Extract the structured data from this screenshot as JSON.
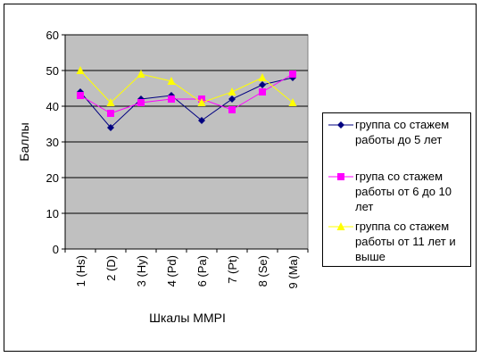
{
  "chart_data": {
    "type": "line",
    "title": "",
    "xlabel": "Шкалы MMPI",
    "ylabel": "Баллы",
    "ylim": [
      0,
      60
    ],
    "yticks": [
      0,
      10,
      20,
      30,
      40,
      50,
      60
    ],
    "grid": true,
    "legend_position": "right",
    "plot_background": "#c0c0c0",
    "categories": [
      "1 (Hs)",
      "2 (D)",
      "3 (Hy)",
      "4 (Pd)",
      "6 (Pa)",
      "7 (Pt)",
      "8 (Se)",
      "9 (Ma)"
    ],
    "series": [
      {
        "name": "группа со стажем работы до 5 лет",
        "color": "#000080",
        "marker": "diamond",
        "values": [
          44,
          34,
          42,
          43,
          36,
          42,
          46,
          48
        ]
      },
      {
        "name": "група со стажем работы от 6 до 10 лет",
        "color": "#ff00ff",
        "marker": "square",
        "values": [
          43,
          38,
          41,
          42,
          42,
          39,
          44,
          49
        ]
      },
      {
        "name": "группа со стажем работы от 11 лет и выше",
        "color": "#ffff00",
        "marker": "triangle",
        "values": [
          50,
          41,
          49,
          47,
          41,
          44,
          48,
          41
        ]
      }
    ]
  }
}
